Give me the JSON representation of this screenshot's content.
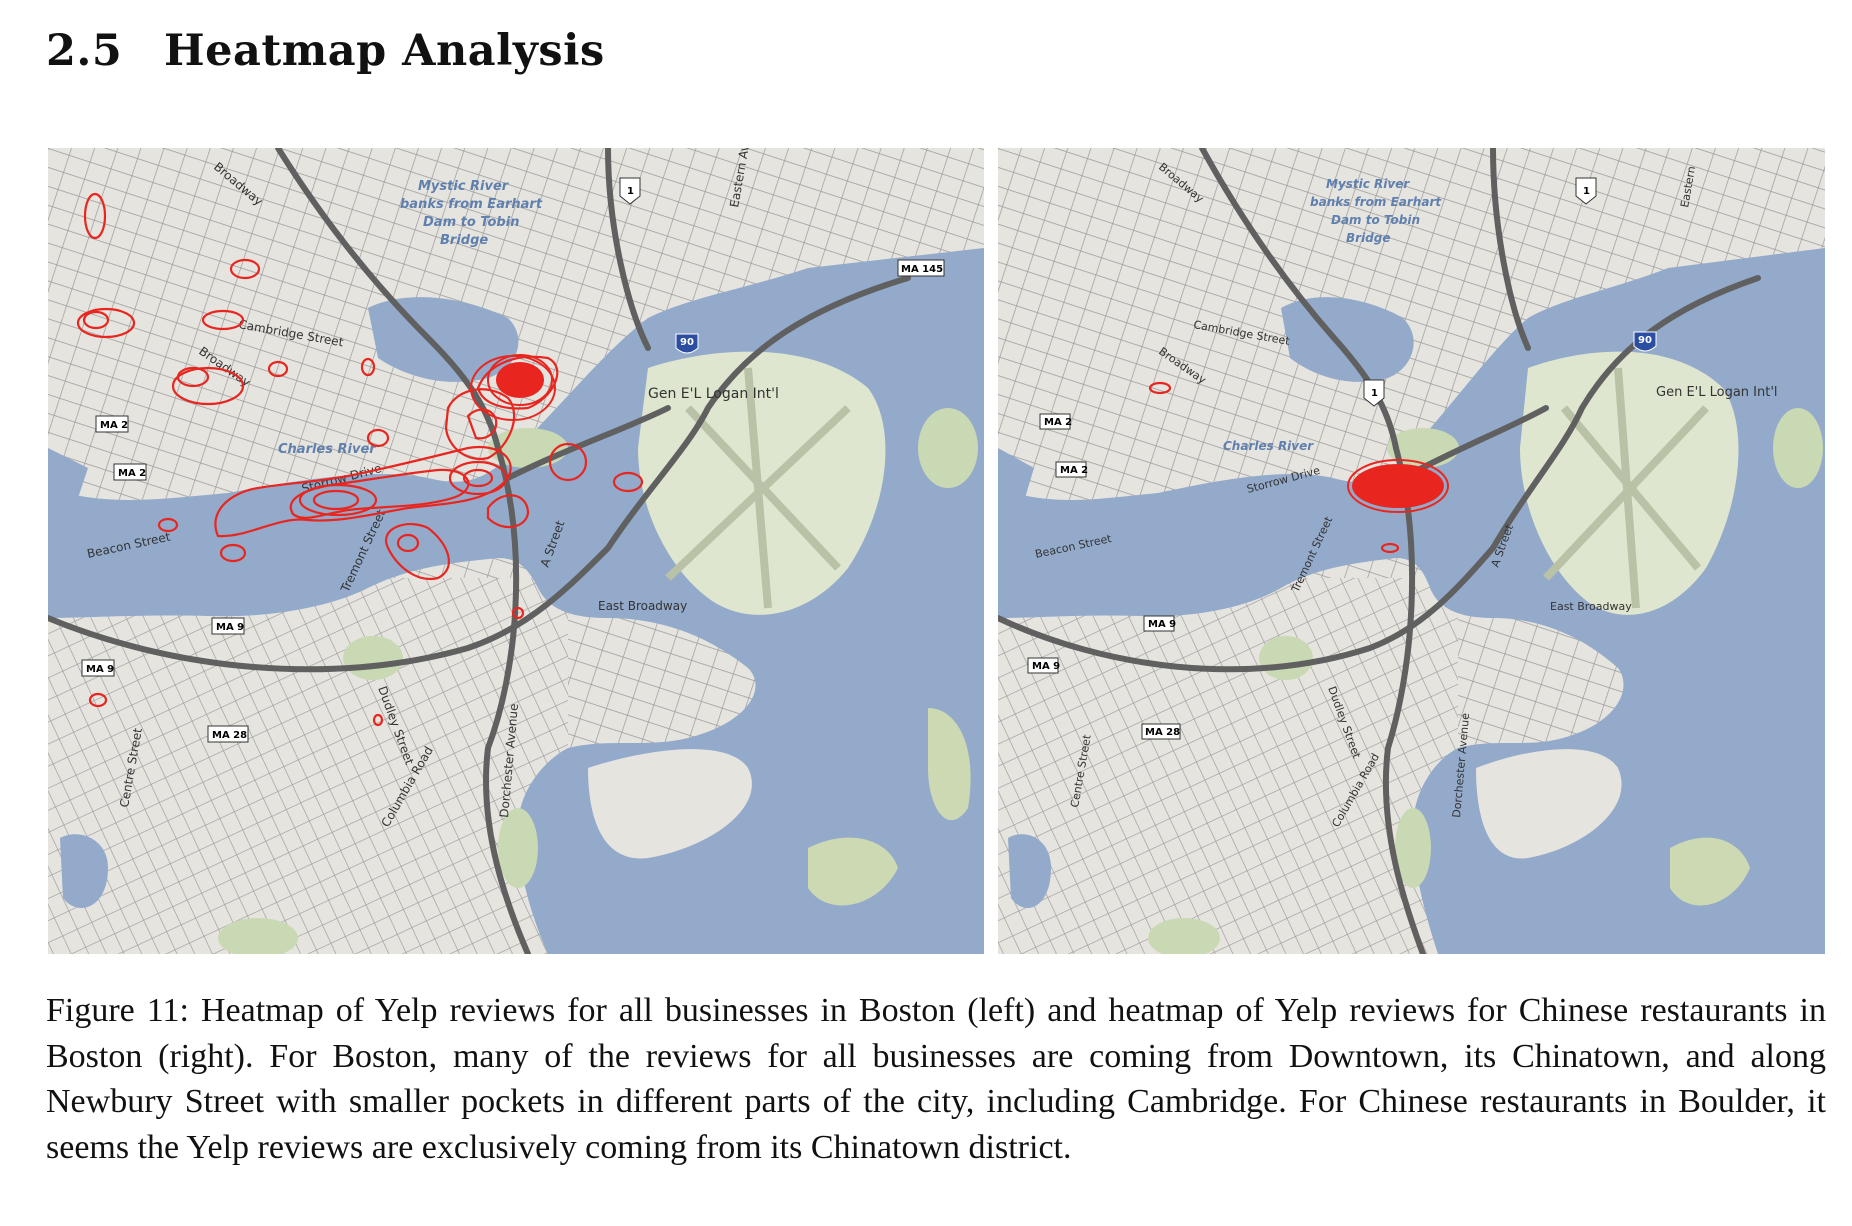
{
  "section": {
    "number": "2.5",
    "title": "Heatmap Analysis"
  },
  "maps": {
    "left": {
      "labels": {
        "mystic1": "Mystic River",
        "mystic2": "banks from Earhart",
        "mystic3": "Dam to Tobin",
        "mystic4": "Bridge",
        "logan": "Gen E'L Logan Int'l",
        "charles": "Charles River",
        "storrow": "Storrow Drive",
        "cambridge": "Cambridge Street",
        "broadway1": "Broadway",
        "broadway2": "Broadway",
        "beacon": "Beacon Street",
        "tremont": "Tremont Street",
        "eastbroadway": "East Broadway",
        "dudley": "Dudley Street",
        "dorchester": "Dorchester Avenue",
        "centre": "Centre Street",
        "columbia": "Columbia Road",
        "astreet": "A Street",
        "eastern": "Eastern Ave",
        "ma2a": "MA 2",
        "ma2b": "MA 2",
        "ma9a": "MA 9",
        "ma9b": "MA 9",
        "ma28": "MA 28",
        "ma145": "MA 145",
        "us1": "1",
        "i90": "90"
      }
    },
    "right": {
      "labels": {
        "mystic1": "Mystic River",
        "mystic2": "banks from Earhart",
        "mystic3": "Dam to Tobin",
        "mystic4": "Bridge",
        "logan": "Gen E'L Logan Int'l",
        "charles": "Charles River",
        "storrow": "Storrow Drive",
        "cambridge": "Cambridge Street",
        "broadway1": "Broadway",
        "broadway2": "Broadway",
        "beacon": "Beacon Street",
        "tremont": "Tremont Street",
        "eastbroadway": "East Broadway",
        "dudley": "Dudley Street",
        "dorchester": "Dorchester Avenue",
        "centre": "Centre Street",
        "columbia": "Columbia Road",
        "astreet": "A Street",
        "eastern": "Eastern",
        "ma2a": "MA 2",
        "ma2b": "MA 2",
        "ma9a": "MA 9",
        "ma9b": "MA 9",
        "ma28": "MA 28",
        "us1a": "1",
        "us1b": "1",
        "i90": "90"
      }
    },
    "colors": {
      "water": "#93aacb",
      "land": "#e8e6e1",
      "park": "#c9d9b4",
      "road": "#8a8a8a",
      "highway": "#6b6b6b",
      "heat": "#e8261f"
    }
  },
  "caption": {
    "label": "Figure 11:",
    "text": "Heatmap of Yelp reviews for all businesses in Boston (left) and heatmap of Yelp reviews for Chinese restaurants in Boston (right). For Boston, many of the reviews for all businesses are coming from Downtown, its Chinatown, and along Newbury Street with smaller pockets in different parts of the city, including Cambridge. For Chinese restaurants in Boulder, it seems the Yelp reviews are exclusively coming from its Chinatown district."
  }
}
